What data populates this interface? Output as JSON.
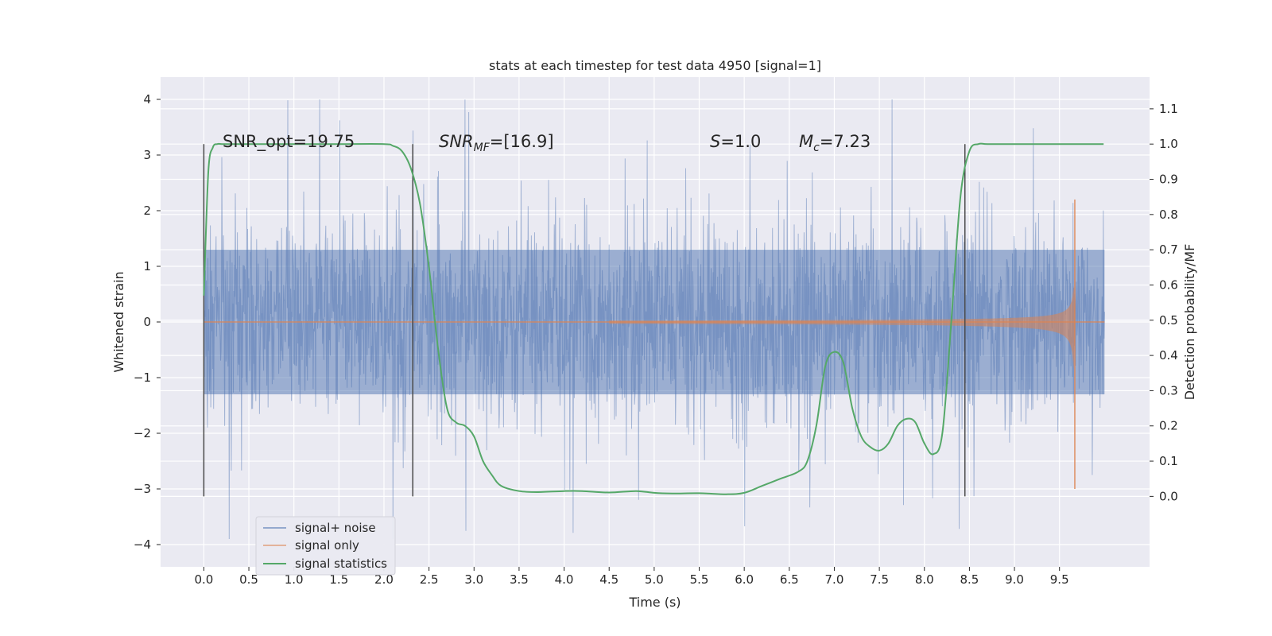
{
  "chart_data": {
    "type": "line",
    "title": "stats at each timestep for test data 4950 [signal=1]",
    "xlabel": "Time (s)",
    "ylabel_left": "Whitened strain",
    "ylabel_right": "Detection probability/MF",
    "xlim": [
      -0.48,
      10.5
    ],
    "ylim_left": [
      -4.4,
      4.4
    ],
    "ylim_right": [
      -0.2,
      1.19
    ],
    "x_ticks": [
      "0.0",
      "0.5",
      "1.0",
      "1.5",
      "2.0",
      "2.5",
      "3.0",
      "3.5",
      "4.0",
      "4.5",
      "5.0",
      "5.5",
      "6.0",
      "6.5",
      "7.0",
      "7.5",
      "8.0",
      "8.5",
      "9.0",
      "9.5"
    ],
    "y_left_ticks": [
      "−4",
      "−3",
      "−2",
      "−1",
      "0",
      "1",
      "2",
      "3",
      "4"
    ],
    "y_right_ticks": [
      "0.0",
      "0.1",
      "0.2",
      "0.3",
      "0.4",
      "0.5",
      "0.6",
      "0.7",
      "0.8",
      "0.9",
      "1.0",
      "1.1"
    ],
    "grid": true,
    "legend_position": "lower-left",
    "annotations": {
      "snr_opt": "SNR_opt=19.75",
      "snr_mf_sym": "SNR",
      "snr_mf_sub": "MF",
      "snr_mf_val": "=[16.9]",
      "s_sym": "S",
      "s_val": "=1.0",
      "mc_sym": "M",
      "mc_sub": "c",
      "mc_val": "=7.23"
    },
    "vlines_x": [
      0.0,
      2.32,
      8.45
    ],
    "series": [
      {
        "name": "signal+ noise",
        "color": "#4c72b0",
        "description_values": "whitened noise samples, envelope ±1.3 typical, peaks ±4.0, x from 0 to 10 s"
      },
      {
        "name": "signal only",
        "color": "#dd8452",
        "chirp_end_s": 9.67,
        "max_amplitude": 2.2
      },
      {
        "name": "signal statistics",
        "color": "#55a868",
        "axis": "right",
        "x": [
          0.0,
          0.05,
          0.1,
          0.15,
          0.2,
          0.3,
          0.5,
          1.0,
          1.5,
          2.0,
          2.1,
          2.2,
          2.3,
          2.4,
          2.5,
          2.6,
          2.7,
          2.8,
          2.9,
          3.0,
          3.1,
          3.2,
          3.3,
          3.5,
          3.7,
          4.0,
          4.2,
          4.5,
          4.8,
          5.0,
          5.2,
          5.5,
          5.8,
          6.0,
          6.2,
          6.4,
          6.6,
          6.7,
          6.8,
          6.9,
          7.0,
          7.1,
          7.2,
          7.3,
          7.4,
          7.5,
          7.6,
          7.7,
          7.8,
          7.9,
          8.0,
          8.1,
          8.2,
          8.3,
          8.4,
          8.5,
          8.6,
          8.7,
          9.0,
          9.5,
          9.99
        ],
        "y": [
          0.57,
          0.92,
          0.99,
          1.0,
          1.0,
          1.0,
          1.0,
          1.0,
          1.0,
          1.0,
          0.995,
          0.98,
          0.93,
          0.83,
          0.65,
          0.42,
          0.25,
          0.21,
          0.2,
          0.17,
          0.1,
          0.06,
          0.03,
          0.015,
          0.012,
          0.015,
          0.015,
          0.011,
          0.015,
          0.01,
          0.008,
          0.009,
          0.006,
          0.01,
          0.03,
          0.05,
          0.07,
          0.1,
          0.2,
          0.37,
          0.41,
          0.38,
          0.25,
          0.17,
          0.14,
          0.13,
          0.15,
          0.2,
          0.22,
          0.21,
          0.15,
          0.12,
          0.18,
          0.5,
          0.85,
          0.98,
          1.0,
          1.0,
          1.0,
          1.0,
          1.0
        ]
      }
    ],
    "legend": [
      "signal+ noise",
      "signal only",
      "signal statistics"
    ]
  },
  "colors": {
    "plot_bg": "#eaeaf2",
    "grid": "#ffffff",
    "noise": "#4c72b0",
    "signal": "#dd8452",
    "stat": "#55a868",
    "vline": "#4a4a4a"
  }
}
